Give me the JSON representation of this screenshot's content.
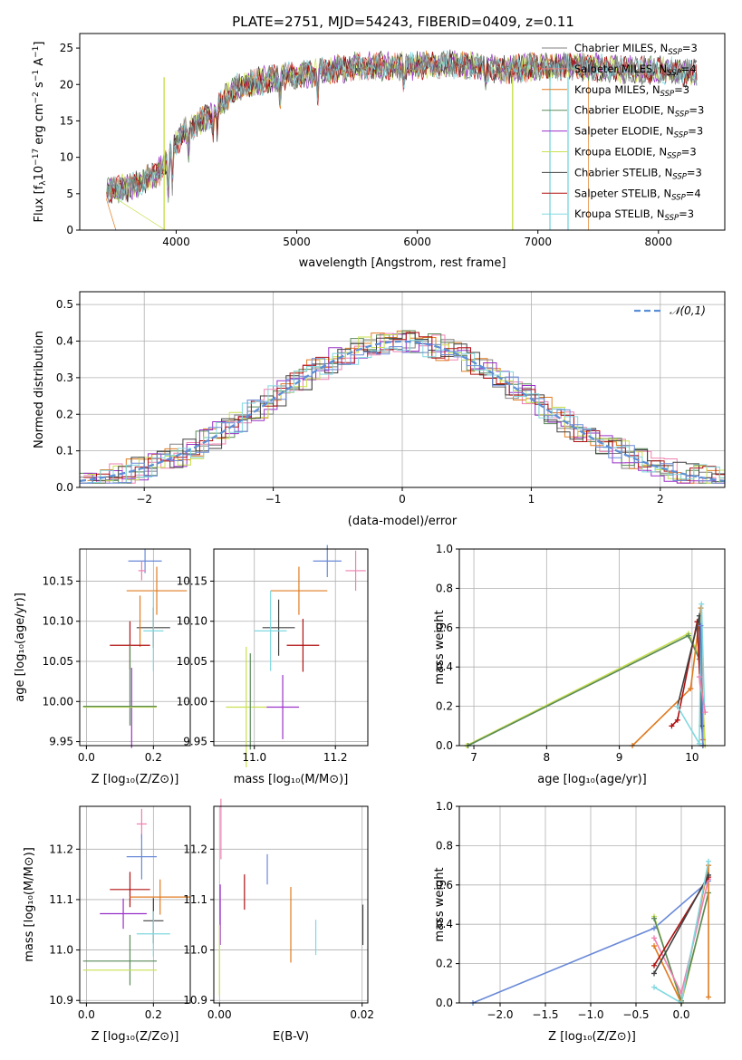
{
  "title": "PLATE=2751, MJD=54243, FIBERID=0409, z=0.11",
  "colors": {
    "chabrier_miles": "#808080",
    "salpeter_miles": "#f07c7c",
    "kroupa_miles": "#e07b20",
    "chabrier_elodie": "#5a8a5a",
    "salpeter_elodie": "#9a30c8",
    "kroupa_elodie": "#c8e050",
    "chabrier_stelib": "#404040",
    "salpeter_stelib": "#b01010",
    "kroupa_stelib": "#80d8e0",
    "pink": "#f080b0",
    "blue": "#6a8ad8",
    "normal_curve": "#5b8fd6"
  },
  "chart_data": [
    {
      "type": "line",
      "id": "spectrum",
      "xlabel": "wavelength [Angstrom, rest frame]",
      "ylabel": "Flux [f_λ 10^-17 erg cm^-2 s^-1 A^-1]",
      "xlim": [
        3200,
        8550
      ],
      "ylim": [
        0,
        27
      ],
      "xticks": [
        4000,
        5000,
        6000,
        7000,
        8000
      ],
      "yticks": [
        0,
        5,
        10,
        15,
        20,
        25
      ],
      "grid": false,
      "legend_position": "top-right",
      "legend": [
        {
          "label": "Chabrier MILES, N",
          "sub": "SSP",
          "tail": "=3",
          "color": "#808080"
        },
        {
          "label": "Salpeter MILES, N",
          "sub": "SSP",
          "tail": "=4",
          "color": "#f07c7c"
        },
        {
          "label": "Kroupa MILES, N",
          "sub": "SSP",
          "tail": "=3",
          "color": "#e07b20"
        },
        {
          "label": "Chabrier ELODIE, N",
          "sub": "SSP",
          "tail": "=3",
          "color": "#5a8a5a"
        },
        {
          "label": "Salpeter ELODIE, N",
          "sub": "SSP",
          "tail": "=3",
          "color": "#9a30c8"
        },
        {
          "label": "Kroupa ELODIE, N",
          "sub": "SSP",
          "tail": "=3",
          "color": "#c8e050"
        },
        {
          "label": "Chabrier STELIB, N",
          "sub": "SSP",
          "tail": "=3",
          "color": "#404040"
        },
        {
          "label": "Salpeter STELIB, N",
          "sub": "SSP",
          "tail": "=4",
          "color": "#b01010"
        },
        {
          "label": "Kroupa STELIB, N",
          "sub": "SSP",
          "tail": "=3",
          "color": "#80d8e0"
        }
      ],
      "continuum": [
        [
          3420,
          5.5
        ],
        [
          3600,
          5.8
        ],
        [
          3700,
          6.5
        ],
        [
          3800,
          7.5
        ],
        [
          3900,
          8.5
        ],
        [
          3950,
          11
        ],
        [
          4000,
          12
        ],
        [
          4100,
          14
        ],
        [
          4200,
          15
        ],
        [
          4300,
          16
        ],
        [
          4400,
          18
        ],
        [
          4500,
          19.5
        ],
        [
          4700,
          20.5
        ],
        [
          4900,
          21
        ],
        [
          5100,
          21.5
        ],
        [
          5300,
          22
        ],
        [
          5500,
          22.5
        ],
        [
          5700,
          22.5
        ],
        [
          5900,
          22.5
        ],
        [
          6100,
          22.7
        ],
        [
          6300,
          22.8
        ],
        [
          6500,
          22.5
        ],
        [
          6700,
          22
        ],
        [
          6900,
          22.3
        ],
        [
          7100,
          22.5
        ],
        [
          7300,
          22.5
        ],
        [
          7500,
          22.3
        ],
        [
          7700,
          22
        ],
        [
          7900,
          22
        ],
        [
          8100,
          21.8
        ],
        [
          8300,
          21.5
        ]
      ]
    },
    {
      "type": "histogram",
      "id": "residuals",
      "xlabel": "(data-model)/error",
      "ylabel": "Normed distribution",
      "xlim": [
        -2.5,
        2.5
      ],
      "ylim": [
        0,
        0.535
      ],
      "xticks": [
        -2,
        -1,
        0,
        1,
        2
      ],
      "yticks": [
        0.0,
        0.1,
        0.2,
        0.3,
        0.4,
        0.5
      ],
      "grid": true,
      "legend_position": "top-right",
      "legend": [
        {
          "label": "𝒩(0,1)",
          "color": "#5b8fd6"
        }
      ],
      "bin_width": 0.1
    },
    {
      "type": "errorbar",
      "id": "age-vs-z",
      "xlabel": "Z [log10(Z/Z⊙)]",
      "ylabel": "age [log10(age/yr)]",
      "xlim": [
        -0.02,
        0.31
      ],
      "ylim": [
        9.945,
        10.19
      ],
      "xticks": [
        0.0,
        0.2
      ],
      "yticks": [
        9.95,
        10.0,
        10.05,
        10.1,
        10.15
      ],
      "grid": true,
      "points": [
        {
          "x": 0.175,
          "xerr": 0.05,
          "y": 10.175,
          "yerr": 0.015,
          "color": "#6a8ad8"
        },
        {
          "x": 0.165,
          "xerr": 0.01,
          "y": 10.163,
          "yerr": 0.012,
          "color": "#f080b0"
        },
        {
          "x": 0.21,
          "xerr": 0.09,
          "y": 10.138,
          "yerr": 0.03,
          "color": "#e07b20"
        },
        {
          "x": 0.2,
          "xerr": 0.05,
          "y": 10.092,
          "yerr": 0.025,
          "color": "#404040"
        },
        {
          "x": 0.2,
          "xerr": 0.03,
          "y": 10.088,
          "yerr": 0.05,
          "color": "#80d8e0"
        },
        {
          "x": 0.16,
          "xerr": 0.0,
          "y": 10.1,
          "yerr": 0.032,
          "color": "#e07b20"
        },
        {
          "x": 0.13,
          "xerr": 0.06,
          "y": 10.07,
          "yerr": 0.03,
          "color": "#b01010"
        },
        {
          "x": 0.13,
          "xerr": 0.0,
          "y": 10.02,
          "yerr": 0.05,
          "color": "#5a8a5a"
        },
        {
          "x": 0.135,
          "xerr": 0.0,
          "y": 9.992,
          "yerr": 0.05,
          "color": "#9a30c8"
        },
        {
          "x": 0.1,
          "xerr": 0.11,
          "y": 9.993,
          "yerr": 0.0,
          "color": "#c8e050"
        },
        {
          "x": 0.1,
          "xerr": 0.11,
          "y": 9.994,
          "yerr": 0.0,
          "color": "#5a8a5a"
        }
      ]
    },
    {
      "type": "errorbar",
      "id": "age-vs-mass",
      "xlabel": "mass [log10(M/M⊙)]",
      "ylabel": "",
      "xlim": [
        10.9,
        11.28
      ],
      "ylim": [
        9.945,
        10.19
      ],
      "xticks": [
        11.0,
        11.2
      ],
      "yticks": [
        9.95,
        10.0,
        10.05,
        10.1,
        10.15
      ],
      "grid": true,
      "points": [
        {
          "x": 11.18,
          "xerr": 0.035,
          "y": 10.175,
          "yerr": 0.02,
          "color": "#6a8ad8"
        },
        {
          "x": 11.25,
          "xerr": 0.025,
          "y": 10.163,
          "yerr": 0.025,
          "color": "#f080b0"
        },
        {
          "x": 11.11,
          "xerr": 0.07,
          "y": 10.138,
          "yerr": 0.03,
          "color": "#e07b20"
        },
        {
          "x": 11.06,
          "xerr": 0.04,
          "y": 10.092,
          "yerr": 0.035,
          "color": "#404040"
        },
        {
          "x": 11.04,
          "xerr": 0.04,
          "y": 10.088,
          "yerr": 0.05,
          "color": "#80d8e0"
        },
        {
          "x": 11.12,
          "xerr": 0.04,
          "y": 10.07,
          "yerr": 0.033,
          "color": "#b01010"
        },
        {
          "x": 11.07,
          "xerr": 0.04,
          "y": 9.993,
          "yerr": 0.04,
          "color": "#9a30c8"
        },
        {
          "x": 10.98,
          "xerr": 0.05,
          "y": 9.993,
          "yerr": 0.075,
          "color": "#c8e050"
        },
        {
          "x": 10.99,
          "xerr": 0.0,
          "y": 10.0,
          "yerr": 0.06,
          "color": "#5a8a5a"
        }
      ]
    },
    {
      "type": "line",
      "id": "mass-weight-vs-age",
      "xlabel": "age  [log10(age/yr)]",
      "ylabel": "mass weight",
      "xlim": [
        6.8,
        10.45
      ],
      "ylim": [
        0.0,
        1.0
      ],
      "xticks": [
        7,
        8,
        9,
        10
      ],
      "yticks": [
        0.0,
        0.2,
        0.4,
        0.6,
        0.8,
        1.0
      ],
      "grid": true,
      "series": [
        {
          "color": "#c8e050",
          "points": [
            [
              6.9,
              0.0
            ],
            [
              9.95,
              0.57
            ],
            [
              10.12,
              0.44
            ],
            [
              10.18,
              0.0
            ]
          ]
        },
        {
          "color": "#5a8a5a",
          "points": [
            [
              6.92,
              0.0
            ],
            [
              9.95,
              0.56
            ],
            [
              10.1,
              0.44
            ],
            [
              10.15,
              0.0
            ]
          ]
        },
        {
          "color": "#e07b20",
          "points": [
            [
              9.18,
              0.0
            ],
            [
              9.98,
              0.29
            ],
            [
              10.12,
              0.7
            ],
            [
              10.15,
              0.03
            ]
          ]
        },
        {
          "color": "#b01010",
          "points": [
            [
              9.72,
              0.1
            ],
            [
              9.8,
              0.13
            ],
            [
              10.07,
              0.63
            ],
            [
              10.15,
              0.0
            ]
          ]
        },
        {
          "color": "#404040",
          "points": [
            [
              9.8,
              0.2
            ],
            [
              10.1,
              0.66
            ],
            [
              10.13,
              0.1
            ]
          ]
        },
        {
          "color": "#80d8e0",
          "points": [
            [
              9.8,
              0.2
            ],
            [
              10.1,
              0.01
            ],
            [
              10.13,
              0.72
            ],
            [
              10.17,
              0.2
            ]
          ]
        },
        {
          "color": "#6a8ad8",
          "points": [
            [
              10.12,
              0.61
            ],
            [
              10.15,
              0.0
            ]
          ]
        },
        {
          "color": "#f080b0",
          "points": [
            [
              10.1,
              0.35
            ],
            [
              10.18,
              0.17
            ]
          ]
        }
      ]
    },
    {
      "type": "errorbar",
      "id": "mass-vs-z",
      "xlabel": "Z [log10(Z/Z⊙)]",
      "ylabel": "mass [log10(M/M⊙)]",
      "xlim": [
        -0.02,
        0.31
      ],
      "ylim": [
        10.895,
        11.285
      ],
      "xticks": [
        0.0,
        0.2
      ],
      "yticks": [
        10.9,
        11.0,
        11.1,
        11.2
      ],
      "grid": true,
      "points": [
        {
          "x": 0.165,
          "xerr": 0.015,
          "y": 11.25,
          "yerr": 0.03,
          "color": "#f080b0"
        },
        {
          "x": 0.165,
          "xerr": 0.045,
          "y": 11.185,
          "yerr": 0.045,
          "color": "#6a8ad8"
        },
        {
          "x": 0.13,
          "xerr": 0.06,
          "y": 11.12,
          "yerr": 0.035,
          "color": "#b01010"
        },
        {
          "x": 0.22,
          "xerr": 0.09,
          "y": 11.105,
          "yerr": 0.035,
          "color": "#e07b20"
        },
        {
          "x": 0.11,
          "xerr": 0.07,
          "y": 11.072,
          "yerr": 0.03,
          "color": "#9a30c8"
        },
        {
          "x": 0.2,
          "xerr": 0.03,
          "y": 11.058,
          "yerr": 0.045,
          "color": "#404040"
        },
        {
          "x": 0.2,
          "xerr": 0.05,
          "y": 11.032,
          "yerr": 0.045,
          "color": "#80d8e0"
        },
        {
          "x": 0.1,
          "xerr": 0.11,
          "y": 10.978,
          "yerr": 0.0,
          "color": "#5a8a5a"
        },
        {
          "x": 0.13,
          "xerr": 0.0,
          "y": 10.98,
          "yerr": 0.05,
          "color": "#5a8a5a"
        },
        {
          "x": 0.1,
          "xerr": 0.11,
          "y": 10.96,
          "yerr": 0.0,
          "color": "#c8e050"
        }
      ]
    },
    {
      "type": "errorbar",
      "id": "mass-vs-ebv",
      "xlabel": "E(B-V)",
      "ylabel": "",
      "xlim": [
        -0.0008,
        0.0208
      ],
      "ylim": [
        10.895,
        11.285
      ],
      "xticks": [
        0.0,
        0.02
      ],
      "yticks": [
        10.9,
        11.0,
        11.1,
        11.2
      ],
      "grid": true,
      "points": [
        {
          "x": 0.0002,
          "xerr": 0.0,
          "y": 11.24,
          "yerr": 0.06,
          "color": "#f080b0"
        },
        {
          "x": 0.0001,
          "xerr": 0.0,
          "y": 11.07,
          "yerr": 0.06,
          "color": "#9a30c8"
        },
        {
          "x": 0.0,
          "xerr": 0.0,
          "y": 10.98,
          "yerr": 0.07,
          "color": "#c8e050"
        },
        {
          "x": 0.0035,
          "xerr": 0.0,
          "y": 11.115,
          "yerr": 0.035,
          "color": "#b01010"
        },
        {
          "x": 0.0067,
          "xerr": 0.0,
          "y": 11.16,
          "yerr": 0.03,
          "color": "#6a8ad8"
        },
        {
          "x": 0.01,
          "xerr": 0.0,
          "y": 11.05,
          "yerr": 0.075,
          "color": "#e07b20"
        },
        {
          "x": 0.0135,
          "xerr": 0.0,
          "y": 11.025,
          "yerr": 0.035,
          "color": "#80d8e0"
        },
        {
          "x": 0.0201,
          "xerr": 0.0,
          "y": 11.05,
          "yerr": 0.04,
          "color": "#404040"
        }
      ]
    },
    {
      "type": "line",
      "id": "mass-weight-vs-z",
      "xlabel": "Z [log10(Z/Z⊙)]",
      "ylabel": "mass weight",
      "xlim": [
        -2.45,
        0.48
      ],
      "ylim": [
        0.0,
        1.0
      ],
      "xticks": [
        -2.0,
        -1.5,
        -1.0,
        -0.5,
        0.0
      ],
      "yticks": [
        0.0,
        0.2,
        0.4,
        0.6,
        0.8,
        1.0
      ],
      "grid": true,
      "series": [
        {
          "color": "#6a8ad8",
          "points": [
            [
              -2.3,
              0.0
            ],
            [
              -0.3,
              0.38
            ],
            [
              0.3,
              0.62
            ]
          ]
        },
        {
          "color": "#c8e050",
          "points": [
            [
              -0.3,
              0.44
            ],
            [
              0.0,
              0.0
            ],
            [
              0.3,
              0.56
            ]
          ]
        },
        {
          "color": "#5a8a5a",
          "points": [
            [
              -0.3,
              0.43
            ],
            [
              0.0,
              0.01
            ],
            [
              0.3,
              0.56
            ]
          ]
        },
        {
          "color": "#e07b20",
          "points": [
            [
              -0.3,
              0.29
            ],
            [
              0.0,
              0.0
            ],
            [
              0.3,
              0.7
            ],
            [
              0.3,
              0.03
            ]
          ]
        },
        {
          "color": "#f080b0",
          "points": [
            [
              -0.3,
              0.33
            ],
            [
              0.0,
              0.05
            ],
            [
              0.3,
              0.63
            ]
          ]
        },
        {
          "color": "#b01010",
          "points": [
            [
              -0.3,
              0.19
            ],
            [
              0.3,
              0.64
            ]
          ]
        },
        {
          "color": "#404040",
          "points": [
            [
              -0.3,
              0.15
            ],
            [
              0.3,
              0.65
            ]
          ]
        },
        {
          "color": "#80d8e0",
          "points": [
            [
              -0.3,
              0.08
            ],
            [
              0.0,
              0.0
            ],
            [
              0.3,
              0.72
            ]
          ]
        }
      ]
    }
  ]
}
